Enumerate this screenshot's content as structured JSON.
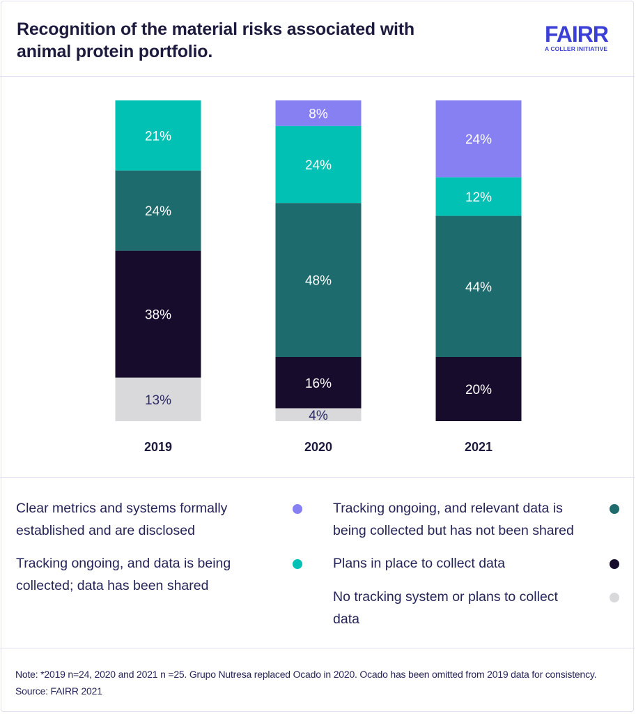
{
  "header": {
    "title": "Recognition of the material risks associated with animal protein portfolio.",
    "logo": {
      "word": "FAIRR",
      "subtitle": "A COLLER INITIATIVE",
      "color": "#3b3fd6"
    }
  },
  "chart_data": {
    "type": "bar",
    "stacked": true,
    "title": "Recognition of the material risks associated with animal protein portfolio.",
    "xlabel": "",
    "ylabel": "",
    "categories": [
      "2019",
      "2020",
      "2021"
    ],
    "series": [
      {
        "name": "Clear metrics and systems formally established and are disclosed",
        "color": "#8680f3",
        "label_color": "#ffffff",
        "values": [
          0,
          8,
          24
        ]
      },
      {
        "name": "Tracking ongoing, and data is being collected; data has been shared",
        "color": "#00c1b4",
        "label_color": "#ffffff",
        "values": [
          21,
          24,
          12
        ]
      },
      {
        "name": "Tracking ongoing, and relevant data is being collected but has not been shared",
        "color": "#1e6b6e",
        "label_color": "#ffffff",
        "values": [
          24,
          48,
          44
        ]
      },
      {
        "name": "Plans in place to collect data",
        "color": "#180c2c",
        "label_color": "#ffffff",
        "values": [
          38,
          16,
          20
        ]
      },
      {
        "name": "No tracking system or plans to collect data",
        "color": "#d9d9db",
        "label_color": "#2b2a66",
        "values": [
          13,
          4,
          0
        ]
      }
    ],
    "value_suffix": "%",
    "axis_visible": false,
    "grid": false,
    "legend_position": "bottom"
  },
  "legend": {
    "items": [
      {
        "label": "Clear metrics and systems formally established and are disclosed",
        "color": "#8680f3"
      },
      {
        "label": "Tracking ongoing, and relevant data is being collected but has not been shared",
        "color": "#1e6b6e"
      },
      {
        "label": "Tracking ongoing, and data is being collected; data has been shared",
        "color": "#00c1b4"
      },
      {
        "label": "Plans in place to collect data",
        "color": "#180c2c"
      },
      {
        "label": "No tracking system or plans to collect data",
        "color": "#d9d9db"
      }
    ]
  },
  "footer": {
    "note": "Note: *2019 n=24, 2020 and 2021 n =25. Grupo Nutresa  replaced Ocado in 2020. Ocado has been omitted from 2019 data for consistency.  Source: FAIRR 2021"
  }
}
